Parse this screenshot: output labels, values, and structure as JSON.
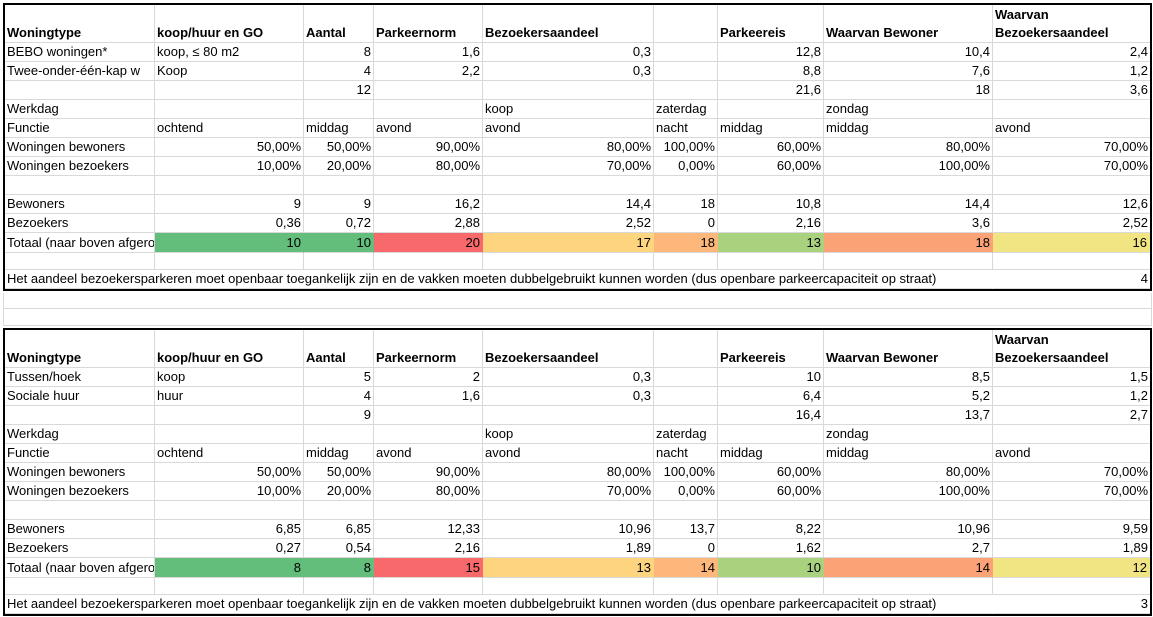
{
  "colors": {
    "green": "#63be7b",
    "light_green": "#a9d27f",
    "red": "#f8696b",
    "orange": "#fba276",
    "light_orange": "#fdb77a",
    "amber": "#ffd47f",
    "yellow": "#f1e482"
  },
  "tables": [
    {
      "header": [
        "Woningtype",
        "koop/huur en GO",
        "Aantal",
        "Parkeernorm",
        "Bezoekersaandeel",
        "",
        "Parkeereis",
        "Waarvan Bewoner",
        "Waarvan Bezoekersaandeel"
      ],
      "types": [
        [
          "BEBO woningen*",
          "koop, ≤ 80 m2",
          "8",
          "1,6",
          "0,3",
          "",
          "12,8",
          "10,4",
          "2,4"
        ],
        [
          "Twee-onder-één-kap w",
          "Koop",
          "4",
          "2,2",
          "0,3",
          "",
          "8,8",
          "7,6",
          "1,2"
        ]
      ],
      "sum_row": [
        "",
        "",
        "12",
        "",
        "",
        "",
        "21,6",
        "18",
        "3,6"
      ],
      "day_row": [
        "Werkdag",
        "",
        "",
        "",
        "koop",
        "zaterdag",
        "",
        "zondag",
        ""
      ],
      "period_row": [
        "Functie",
        "ochtend",
        "middag",
        "avond",
        "avond",
        "nacht",
        "middag",
        "middag",
        "avond"
      ],
      "pct_bewoners": [
        "Woningen bewoners",
        "50,00%",
        "50,00%",
        "90,00%",
        "80,00%",
        "100,00%",
        "60,00%",
        "80,00%",
        "70,00%"
      ],
      "pct_bezoekers": [
        "Woningen bezoekers",
        "10,00%",
        "20,00%",
        "80,00%",
        "70,00%",
        "0,00%",
        "60,00%",
        "100,00%",
        "70,00%"
      ],
      "bewoners": [
        "Bewoners",
        "9",
        "9",
        "16,2",
        "14,4",
        "18",
        "10,8",
        "14,4",
        "12,6"
      ],
      "bezoekers": [
        "Bezoekers",
        "0,36",
        "0,72",
        "2,88",
        "2,52",
        "0",
        "2,16",
        "3,6",
        "2,52"
      ],
      "totaal": [
        "Totaal (naar boven afgerond)",
        "10",
        "10",
        "20",
        "17",
        "18",
        "13",
        "18",
        "16"
      ],
      "note": "Het aandeel bezoekersparkeren moet openbaar toegankelijk zijn en de vakken moeten dubbelgebruikt kunnen worden (dus openbare parkeercapaciteit op straat)",
      "note_value": "4"
    },
    {
      "header": [
        "Woningtype",
        "koop/huur en GO",
        "Aantal",
        "Parkeernorm",
        "Bezoekersaandeel",
        "",
        "Parkeereis",
        "Waarvan Bewoner",
        "Waarvan Bezoekersaandeel"
      ],
      "types": [
        [
          "Tussen/hoek",
          "koop",
          "5",
          "2",
          "0,3",
          "",
          "10",
          "8,5",
          "1,5"
        ],
        [
          "Sociale huur",
          "huur",
          "4",
          "1,6",
          "0,3",
          "",
          "6,4",
          "5,2",
          "1,2"
        ]
      ],
      "sum_row": [
        "",
        "",
        "9",
        "",
        "",
        "",
        "16,4",
        "13,7",
        "2,7"
      ],
      "day_row": [
        "Werkdag",
        "",
        "",
        "",
        "koop",
        "zaterdag",
        "",
        "zondag",
        ""
      ],
      "period_row": [
        "Functie",
        "ochtend",
        "middag",
        "avond",
        "avond",
        "nacht",
        "middag",
        "middag",
        "avond"
      ],
      "pct_bewoners": [
        "Woningen bewoners",
        "50,00%",
        "50,00%",
        "90,00%",
        "80,00%",
        "100,00%",
        "60,00%",
        "80,00%",
        "70,00%"
      ],
      "pct_bezoekers": [
        "Woningen bezoekers",
        "10,00%",
        "20,00%",
        "80,00%",
        "70,00%",
        "0,00%",
        "60,00%",
        "100,00%",
        "70,00%"
      ],
      "bewoners": [
        "Bewoners",
        "6,85",
        "6,85",
        "12,33",
        "10,96",
        "13,7",
        "8,22",
        "10,96",
        "9,59"
      ],
      "bezoekers": [
        "Bezoekers",
        "0,27",
        "0,54",
        "2,16",
        "1,89",
        "0",
        "1,62",
        "2,7",
        "1,89"
      ],
      "totaal": [
        "Totaal (naar boven afgerond)",
        "8",
        "8",
        "15",
        "13",
        "14",
        "10",
        "14",
        "12"
      ],
      "note": "Het aandeel bezoekersparkeren moet openbaar toegankelijk zijn en de vakken moeten dubbelgebruikt kunnen worden (dus openbare parkeercapaciteit op straat)",
      "note_value": "3"
    }
  ],
  "totaal_colors": [
    "green",
    "green",
    "red",
    "amber",
    "light_orange",
    "light_green",
    "orange",
    "yellow"
  ]
}
